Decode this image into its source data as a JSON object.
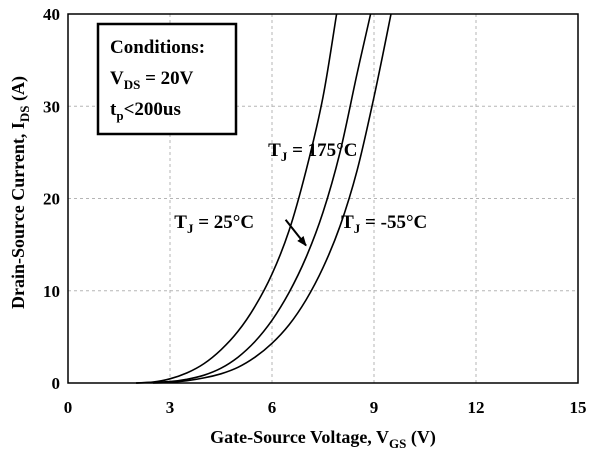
{
  "chart_data": {
    "type": "line",
    "xlabel": {
      "main": "Gate-Source Voltage, V",
      "sub": "GS",
      "unit": " (V)"
    },
    "ylabel": {
      "main": "Drain-Source Current, I",
      "sub": "DS",
      "unit": " (A)"
    },
    "xlim": [
      0,
      15
    ],
    "ylim": [
      0,
      40
    ],
    "xticks": [
      0,
      3,
      6,
      9,
      12,
      15
    ],
    "yticks": [
      0,
      10,
      20,
      30,
      40
    ],
    "grid": true,
    "series": [
      {
        "name": "T_J = 175°C",
        "x": [
          2.0,
          2.5,
          3.0,
          3.5,
          4.0,
          4.5,
          5.0,
          5.5,
          6.0,
          6.5,
          7.0,
          7.5,
          7.9
        ],
        "y": [
          0,
          0.1,
          0.45,
          1.1,
          2.1,
          3.6,
          5.6,
          8.3,
          11.8,
          16.5,
          23.0,
          31.0,
          40.0
        ]
      },
      {
        "name": "T_J = 25°C",
        "x": [
          2.0,
          3.0,
          3.5,
          4.0,
          4.5,
          5.0,
          5.5,
          6.0,
          6.5,
          7.0,
          7.5,
          8.0,
          8.5,
          8.9
        ],
        "y": [
          0,
          0.15,
          0.4,
          0.85,
          1.6,
          2.8,
          4.5,
          6.8,
          9.8,
          13.6,
          18.5,
          25.0,
          33.5,
          40.0
        ]
      },
      {
        "name": "T_J = -55°C",
        "x": [
          2.5,
          3.0,
          3.5,
          4.0,
          4.5,
          5.0,
          5.5,
          6.0,
          6.5,
          7.0,
          7.5,
          8.0,
          8.5,
          9.0,
          9.5
        ],
        "y": [
          0,
          0.08,
          0.25,
          0.55,
          1.0,
          1.7,
          2.8,
          4.3,
          6.3,
          9.0,
          12.5,
          17.0,
          23.0,
          31.0,
          40.0
        ]
      }
    ],
    "annotations": [
      {
        "prefix": "T",
        "sub": "J",
        "text": " = 175°C",
        "x": 7.2,
        "y": 24.6
      },
      {
        "prefix": "T",
        "sub": "J",
        "text": " = 25°C",
        "x": 4.3,
        "y": 16.8
      },
      {
        "prefix": "T",
        "sub": "J",
        "text": " = -55°C",
        "x": 9.3,
        "y": 16.8
      }
    ],
    "arrow": {
      "from": [
        6.4,
        17.7
      ],
      "to": [
        7.0,
        14.9
      ]
    },
    "conditions": {
      "title": "Conditions:",
      "line1": {
        "prefix": "V",
        "sub": "DS",
        "text": " = 20V"
      },
      "line2": {
        "prefix": "t",
        "sub": "p",
        "text": "<200us"
      }
    }
  }
}
